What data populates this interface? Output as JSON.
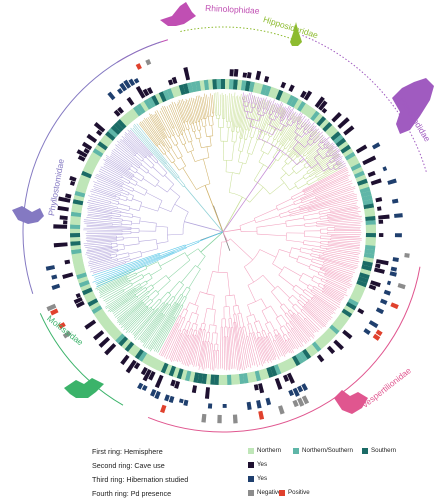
{
  "families": [
    {
      "name": "Rhinolophidae",
      "color": "#c04fb3"
    },
    {
      "name": "Hipposideridae",
      "color": "#8dbb2f"
    },
    {
      "name": "Pteropodidae",
      "color": "#a05bc0"
    },
    {
      "name": "Vespertilionidae",
      "color": "#e0568f"
    },
    {
      "name": "Molossidae",
      "color": "#3bb36a"
    },
    {
      "name": "Phyllostomidae",
      "color": "#8479c2"
    }
  ],
  "legend": {
    "rings": [
      {
        "title": "First ring: Hemisphere",
        "items": [
          {
            "label": "Northern",
            "color": "#bfe6b8"
          },
          {
            "label": "Northern/Southern",
            "color": "#5fb6a8"
          },
          {
            "label": "Southern",
            "color": "#1b6b66"
          }
        ]
      },
      {
        "title": "Second ring: Cave use",
        "items": [
          {
            "label": "Yes",
            "color": "#1e1030"
          }
        ]
      },
      {
        "title": "Third ring: Hibernation studied",
        "items": [
          {
            "label": "Yes",
            "color": "#1f3f6e"
          }
        ]
      },
      {
        "title": "Fourth ring: Pd presence",
        "items": [
          {
            "label": "Negative",
            "color": "#8c8c8c"
          },
          {
            "label": "Positive",
            "color": "#e0412d"
          }
        ]
      }
    ]
  },
  "colors": {
    "phyllostomidae_clade": "#b3a6dc",
    "noctilionoid_clade": "#8fd1d6",
    "rhinolophoid_clade": "#d1b36a",
    "pteropodid_clade": "#c9df97",
    "pteropodid_tips": "#c68fd6",
    "vesper_clade": "#f2a2bf",
    "molossid_clade": "#86d3a0",
    "emballo_clade": "#5ac7e8",
    "stem": "#7d7d7d"
  }
}
